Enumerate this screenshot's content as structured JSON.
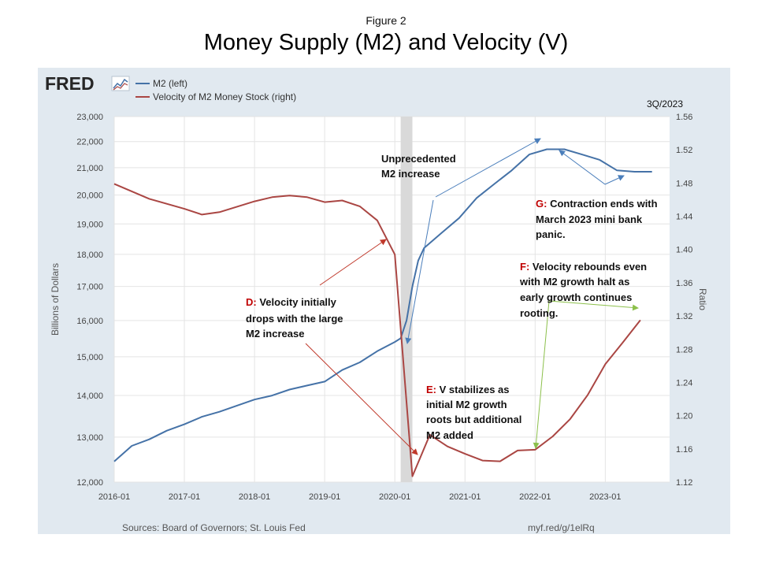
{
  "figure_label": "Figure 2",
  "title": "Money Supply (M2) and Velocity (V)",
  "fred_logo": "FRED",
  "legend": [
    {
      "label": "M2 (left)",
      "color": "#4572a7"
    },
    {
      "label": "Velocity of M2 Money Stock (right)",
      "color": "#aa4643"
    }
  ],
  "period_label": "3Q/2023",
  "sources": "Sources: Board of Governors; St. Louis Fed",
  "url": "myf.red/g/1elRq",
  "annotations": {
    "unprecedented": [
      "Unprecedented",
      "M2 increase"
    ],
    "d": {
      "letter": "D:",
      "lines": [
        "Velocity initially",
        "drops with the large",
        "M2 increase"
      ]
    },
    "e": {
      "letter": "E:",
      "lines": [
        "V stabilizes as",
        "initial M2 growth",
        "roots but additional",
        "M2 added"
      ]
    },
    "f": {
      "letter": "F:",
      "lines": [
        "Velocity rebounds even",
        "with M2 growth halt as",
        "early growth continues",
        "rooting."
      ]
    },
    "g": {
      "letter": "G:",
      "lines": [
        "Contraction ends with",
        "March 2023 mini bank",
        "panic."
      ]
    }
  },
  "chart_data": {
    "type": "line",
    "xlabel": "",
    "ylabel_left": "Billions of Dollars",
    "ylabel_right": "Ratio",
    "x_ticks": [
      "2016-01",
      "2017-01",
      "2018-01",
      "2019-01",
      "2020-01",
      "2021-01",
      "2022-01",
      "2023-01"
    ],
    "y_left_ticks": [
      "12,000",
      "13,000",
      "14,000",
      "15,000",
      "16,000",
      "17,000",
      "18,000",
      "19,000",
      "20,000",
      "21,000",
      "22,000",
      "23,000"
    ],
    "y_right_ticks": [
      "1.12",
      "1.16",
      "1.20",
      "1.24",
      "1.28",
      "1.32",
      "1.36",
      "1.40",
      "1.44",
      "1.48",
      "1.52",
      "1.56"
    ],
    "ylim_left": [
      12000,
      23000
    ],
    "ylim_right": [
      1.12,
      1.56
    ],
    "y_left_scale": "log",
    "recession_shading": [
      "2020-02",
      "2020-04"
    ],
    "series": [
      {
        "name": "M2 (left)",
        "axis": "left",
        "color": "#4572a7",
        "x": [
          "2016-01",
          "2016-04",
          "2016-07",
          "2016-10",
          "2017-01",
          "2017-04",
          "2017-07",
          "2017-10",
          "2018-01",
          "2018-04",
          "2018-07",
          "2018-10",
          "2019-01",
          "2019-04",
          "2019-07",
          "2019-10",
          "2020-01",
          "2020-02",
          "2020-03",
          "2020-04",
          "2020-05",
          "2020-06",
          "2020-09",
          "2020-12",
          "2021-03",
          "2021-06",
          "2021-09",
          "2021-12",
          "2022-03",
          "2022-06",
          "2022-09",
          "2022-12",
          "2023-03",
          "2023-06",
          "2023-09"
        ],
        "values": [
          12450,
          12800,
          12950,
          13150,
          13300,
          13480,
          13600,
          13750,
          13900,
          14000,
          14150,
          14250,
          14350,
          14650,
          14850,
          15150,
          15400,
          15500,
          16000,
          17000,
          17800,
          18200,
          18700,
          19200,
          19900,
          20400,
          20900,
          21500,
          21700,
          21700,
          21500,
          21300,
          20900,
          20850,
          20850
        ]
      },
      {
        "name": "Velocity of M2 Money Stock (right)",
        "axis": "right",
        "color": "#aa4643",
        "x": [
          "2016-01",
          "2016-07",
          "2017-01",
          "2017-04",
          "2017-07",
          "2018-01",
          "2018-04",
          "2018-07",
          "2018-10",
          "2019-01",
          "2019-04",
          "2019-07",
          "2019-10",
          "2020-01",
          "2020-04",
          "2020-07",
          "2020-10",
          "2021-01",
          "2021-04",
          "2021-07",
          "2021-10",
          "2022-01",
          "2022-04",
          "2022-07",
          "2022-10",
          "2023-01",
          "2023-04",
          "2023-07"
        ],
        "values": [
          1.479,
          1.461,
          1.449,
          1.442,
          1.445,
          1.458,
          1.463,
          1.465,
          1.463,
          1.457,
          1.459,
          1.452,
          1.435,
          1.394,
          1.127,
          1.177,
          1.163,
          1.154,
          1.146,
          1.145,
          1.158,
          1.159,
          1.175,
          1.196,
          1.225,
          1.262,
          1.288,
          1.315
        ]
      }
    ]
  }
}
